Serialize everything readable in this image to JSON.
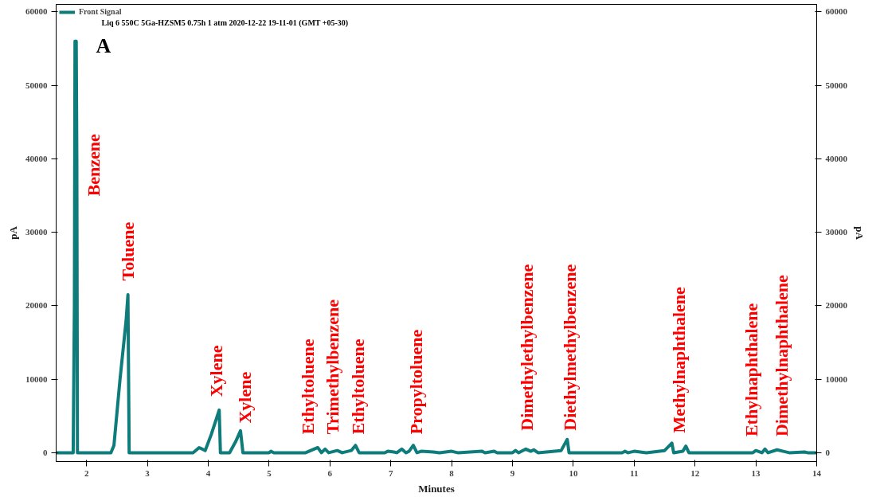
{
  "chart_data": {
    "type": "line",
    "xlabel": "Minutes",
    "ylabel": "pA",
    "y2label": "pA",
    "xlim": [
      1.5,
      14
    ],
    "xticks": [
      2,
      3,
      4,
      5,
      6,
      7,
      8,
      9,
      10,
      11,
      12,
      13,
      14
    ],
    "ylim": [
      -1200,
      61000
    ],
    "yticks": [
      0,
      10000,
      20000,
      30000,
      40000,
      50000,
      60000
    ],
    "y2lim": [
      -1200,
      61000
    ],
    "y2ticks": [
      0,
      10000,
      20000,
      30000,
      40000,
      50000,
      60000
    ],
    "grid": false,
    "legend": "top left",
    "marker": "none",
    "line_style": "solid",
    "series": [
      {
        "name": "Front Signal",
        "color": "#0e7c7b",
        "x": [
          1.5,
          1.78,
          1.8,
          1.81,
          1.83,
          1.84,
          1.85,
          2.4,
          2.45,
          2.55,
          2.65,
          2.68,
          2.7,
          3.75,
          3.85,
          3.95,
          4.05,
          4.18,
          4.2,
          4.35,
          4.45,
          4.53,
          4.57,
          5.0,
          5.03,
          5.08,
          5.6,
          5.8,
          5.86,
          5.92,
          5.98,
          6.12,
          6.2,
          6.35,
          6.42,
          6.48,
          6.9,
          6.95,
          7.05,
          7.1,
          7.18,
          7.25,
          7.3,
          7.37,
          7.43,
          7.5,
          7.7,
          7.8,
          8.0,
          8.1,
          8.5,
          8.55,
          8.7,
          8.75,
          9.0,
          9.05,
          9.1,
          9.22,
          9.3,
          9.35,
          9.42,
          9.8,
          9.9,
          9.93,
          10.8,
          10.85,
          10.9,
          11.0,
          11.1,
          11.2,
          11.5,
          11.62,
          11.65,
          11.8,
          11.85,
          11.9,
          12.95,
          13.0,
          13.1,
          13.15,
          13.2,
          13.35,
          13.45,
          13.55,
          13.8,
          13.85,
          14
        ],
        "values": [
          0,
          0,
          20000,
          56000,
          56000,
          40000,
          0,
          0,
          1000,
          10000,
          18000,
          21500,
          0,
          0,
          700,
          300,
          2500,
          5800,
          0,
          0,
          1500,
          3000,
          0,
          0,
          200,
          0,
          0,
          700,
          0,
          500,
          0,
          300,
          0,
          300,
          1000,
          0,
          0,
          200,
          100,
          0,
          500,
          0,
          200,
          1000,
          0,
          200,
          100,
          0,
          200,
          0,
          200,
          0,
          200,
          0,
          0,
          300,
          0,
          500,
          200,
          400,
          0,
          300,
          1800,
          0,
          0,
          200,
          0,
          200,
          100,
          0,
          300,
          1300,
          0,
          200,
          900,
          0,
          0,
          300,
          0,
          500,
          0,
          400,
          200,
          0,
          100,
          0,
          0
        ]
      }
    ],
    "annotations": [
      "Liq 6 550C 5Ga-HZSM5 0.75h 1 atm 2020-12-22 19-11-01 (GMT +05-30)",
      "A",
      "Benzene",
      "Toluene",
      "Xylene",
      "Xylene",
      "Ethyltoluene",
      "Trimethylbenzene",
      "Ethyltoluene",
      "Propyltoluene",
      "Dimethylethylbenzene",
      "Diethylmethylbenzene",
      "Methylnaphthalene",
      "Ethylnaphthalene",
      "Dimethylnaphthalene"
    ]
  }
}
